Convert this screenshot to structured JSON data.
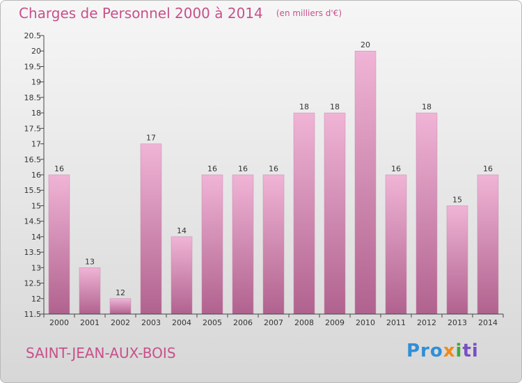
{
  "title": "Charges de Personnel 2000 à 2014",
  "unit_note": "(en milliers d'€)",
  "city": "SAINT-JEAN-AUX-BOIS",
  "logo": {
    "p": "Pro",
    "x": "x",
    "i": "i",
    "ti": "ti"
  },
  "colors": {
    "title": "#c8508a",
    "bar_top": "#f0b4d6",
    "bar_bottom": "#b0628e",
    "axis": "#444444"
  },
  "chart_data": {
    "type": "bar",
    "categories": [
      "2000",
      "2001",
      "2002",
      "2003",
      "2004",
      "2005",
      "2006",
      "2007",
      "2008",
      "2009",
      "2010",
      "2011",
      "2012",
      "2013",
      "2014"
    ],
    "values": [
      16,
      13,
      12,
      17,
      14,
      16,
      16,
      16,
      18,
      18,
      20,
      16,
      18,
      15,
      16
    ],
    "data_labels": [
      "16",
      "13",
      "12",
      "17",
      "14",
      "16",
      "16",
      "16",
      "18",
      "18",
      "20",
      "16",
      "18",
      "15",
      "16"
    ],
    "yticks": [
      "11.5",
      "12",
      "12.5",
      "13",
      "13.5",
      "14",
      "14.5",
      "15",
      "15.5",
      "16",
      "16.5",
      "17",
      "17.5",
      "18",
      "18.5",
      "19",
      "19.5",
      "20",
      "20.5"
    ],
    "ylim": [
      11.5,
      20.5
    ],
    "grid": false,
    "legend": "none"
  }
}
